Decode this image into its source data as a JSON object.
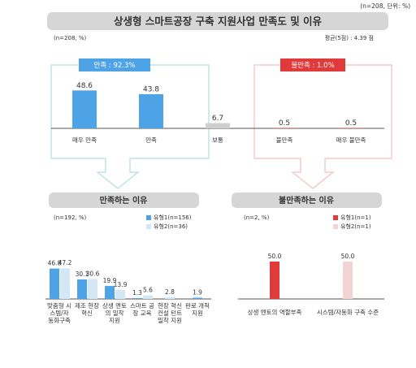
{
  "chart_data": [
    {
      "type": "bar",
      "title": "상생형 스마트공장 구축 지원사업 만족도 및 이유",
      "subtitle": "(n=208, %)",
      "annotations": [
        "(n=208, 단위: %)",
        "평균(5점) : 4.39 점",
        "만족 : 92.3%",
        "불만족 : 1.0%"
      ],
      "categories": [
        "매우 만족",
        "만족",
        "보통",
        "불만족",
        "매우 불만족"
      ],
      "values": [
        48.6,
        43.8,
        6.7,
        0.5,
        0.5
      ],
      "colors": [
        "#4da3e6",
        "#4da3e6",
        "#cfcfcf",
        "#e03a3a",
        "#e03a3a"
      ],
      "ylim": [
        0,
        50
      ]
    },
    {
      "type": "grouped-bar",
      "title": "만족하는 이유",
      "subtitle": "(n=192, %)",
      "categories": [
        "맞춤형 시스템/자동화구축",
        "제조 현장 혁신",
        "상생 멘토의 밀착 지원",
        "스마트 공장 교육",
        "현장 혁신 컨설 턴트 밀착 지원",
        "판로 개척 지원"
      ],
      "series": [
        {
          "name": "유형1(n=156)",
          "color": "#4da3e6",
          "values": [
            46.8,
            30.1,
            19.9,
            1.3,
            null,
            1.9
          ]
        },
        {
          "name": "유형2(n=36)",
          "color": "#d3e8f4",
          "values": [
            47.2,
            30.6,
            13.9,
            5.6,
            2.8,
            null
          ]
        }
      ],
      "ylim": [
        0,
        50
      ]
    },
    {
      "type": "grouped-bar",
      "title": "불만족하는 이유",
      "subtitle": "(n=2, %)",
      "categories": [
        "상생 멘토의 역할부족",
        "시스템/자동화 구축 수준"
      ],
      "series": [
        {
          "name": "유형1(n=1)",
          "color": "#e03a3a",
          "values": [
            50.0,
            null
          ],
          "value_labels": [
            "50.0",
            null
          ]
        },
        {
          "name": "유형2(n=1)",
          "color": "#f2d4d4",
          "values": [
            null,
            50.0
          ],
          "value_labels": [
            null,
            "50.0"
          ]
        }
      ],
      "ylim": [
        0,
        50
      ]
    }
  ]
}
